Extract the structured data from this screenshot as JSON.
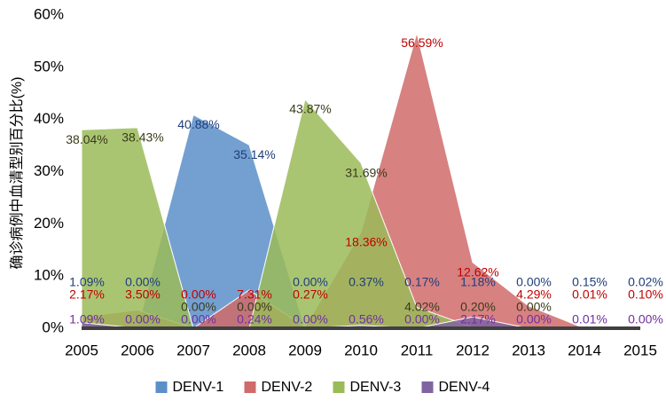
{
  "chart_data": {
    "type": "area",
    "y_label": "确诊病例中血清型别百分比(%)",
    "categories": [
      "2005",
      "2006",
      "2007",
      "2008",
      "2009",
      "2010",
      "2011",
      "2012",
      "2013",
      "2014",
      "2015"
    ],
    "ylim": [
      0,
      60
    ],
    "yticks": [
      {
        "value": 0,
        "label": "0%"
      },
      {
        "value": 10,
        "label": "10%"
      },
      {
        "value": 20,
        "label": "20%"
      },
      {
        "value": 30,
        "label": "30%"
      },
      {
        "value": 40,
        "label": "40%"
      },
      {
        "value": 50,
        "label": "50%"
      },
      {
        "value": 60,
        "label": "60%"
      }
    ],
    "legend": "bottom",
    "series": [
      {
        "name": "DENV-1",
        "color": "#5b8fc9",
        "label_color": "#1f3d7a",
        "values": [
          1.09,
          0,
          40.88,
          35.14,
          0,
          0.37,
          0.17,
          1.18,
          0,
          0.15,
          0.02
        ],
        "value_labels": [
          "1.09%",
          "0.00%",
          "40.88%",
          "35.14%",
          "0.00%",
          "0.37%",
          "0.17%",
          "1.18%",
          "0.00%",
          "0.15%",
          "0.02%"
        ]
      },
      {
        "name": "DENV-2",
        "color": "#d06b6b",
        "label_color": "#c00000",
        "values": [
          2.17,
          3.5,
          0,
          7.31,
          0.27,
          18.36,
          56.59,
          12.62,
          4.29,
          0.01,
          0.1
        ],
        "value_labels": [
          "2.17%",
          "3.50%",
          "0.00%",
          "7.31%",
          "0.27%",
          "18.36%",
          "56.59%",
          "12.62%",
          "4.29%",
          "0.01%",
          "0.10%"
        ]
      },
      {
        "name": "DENV-3",
        "color": "#9bbb59",
        "label_color": "#3a3a1a",
        "values": [
          38.04,
          38.43,
          0,
          0,
          43.87,
          31.69,
          4.02,
          0.2,
          0,
          null,
          null
        ],
        "value_labels": [
          "38.04%",
          "38.43%",
          "0.00%",
          "0.00%",
          "43.87%",
          "31.69%",
          "4.02%",
          "0.20%",
          "0.00%",
          null,
          null
        ]
      },
      {
        "name": "DENV-4",
        "color": "#8064a2",
        "label_color": "#7030a0",
        "values": [
          1.09,
          0,
          0,
          0.24,
          0,
          0.56,
          0,
          2.17,
          0,
          0.01,
          0
        ],
        "value_labels": [
          "1.09%",
          "0.00%",
          "0.00%",
          "0.24%",
          "0.00%",
          "0.56%",
          "0.00%",
          "2.17%",
          "0.00%",
          "0.01%",
          "0.00%"
        ]
      }
    ]
  }
}
